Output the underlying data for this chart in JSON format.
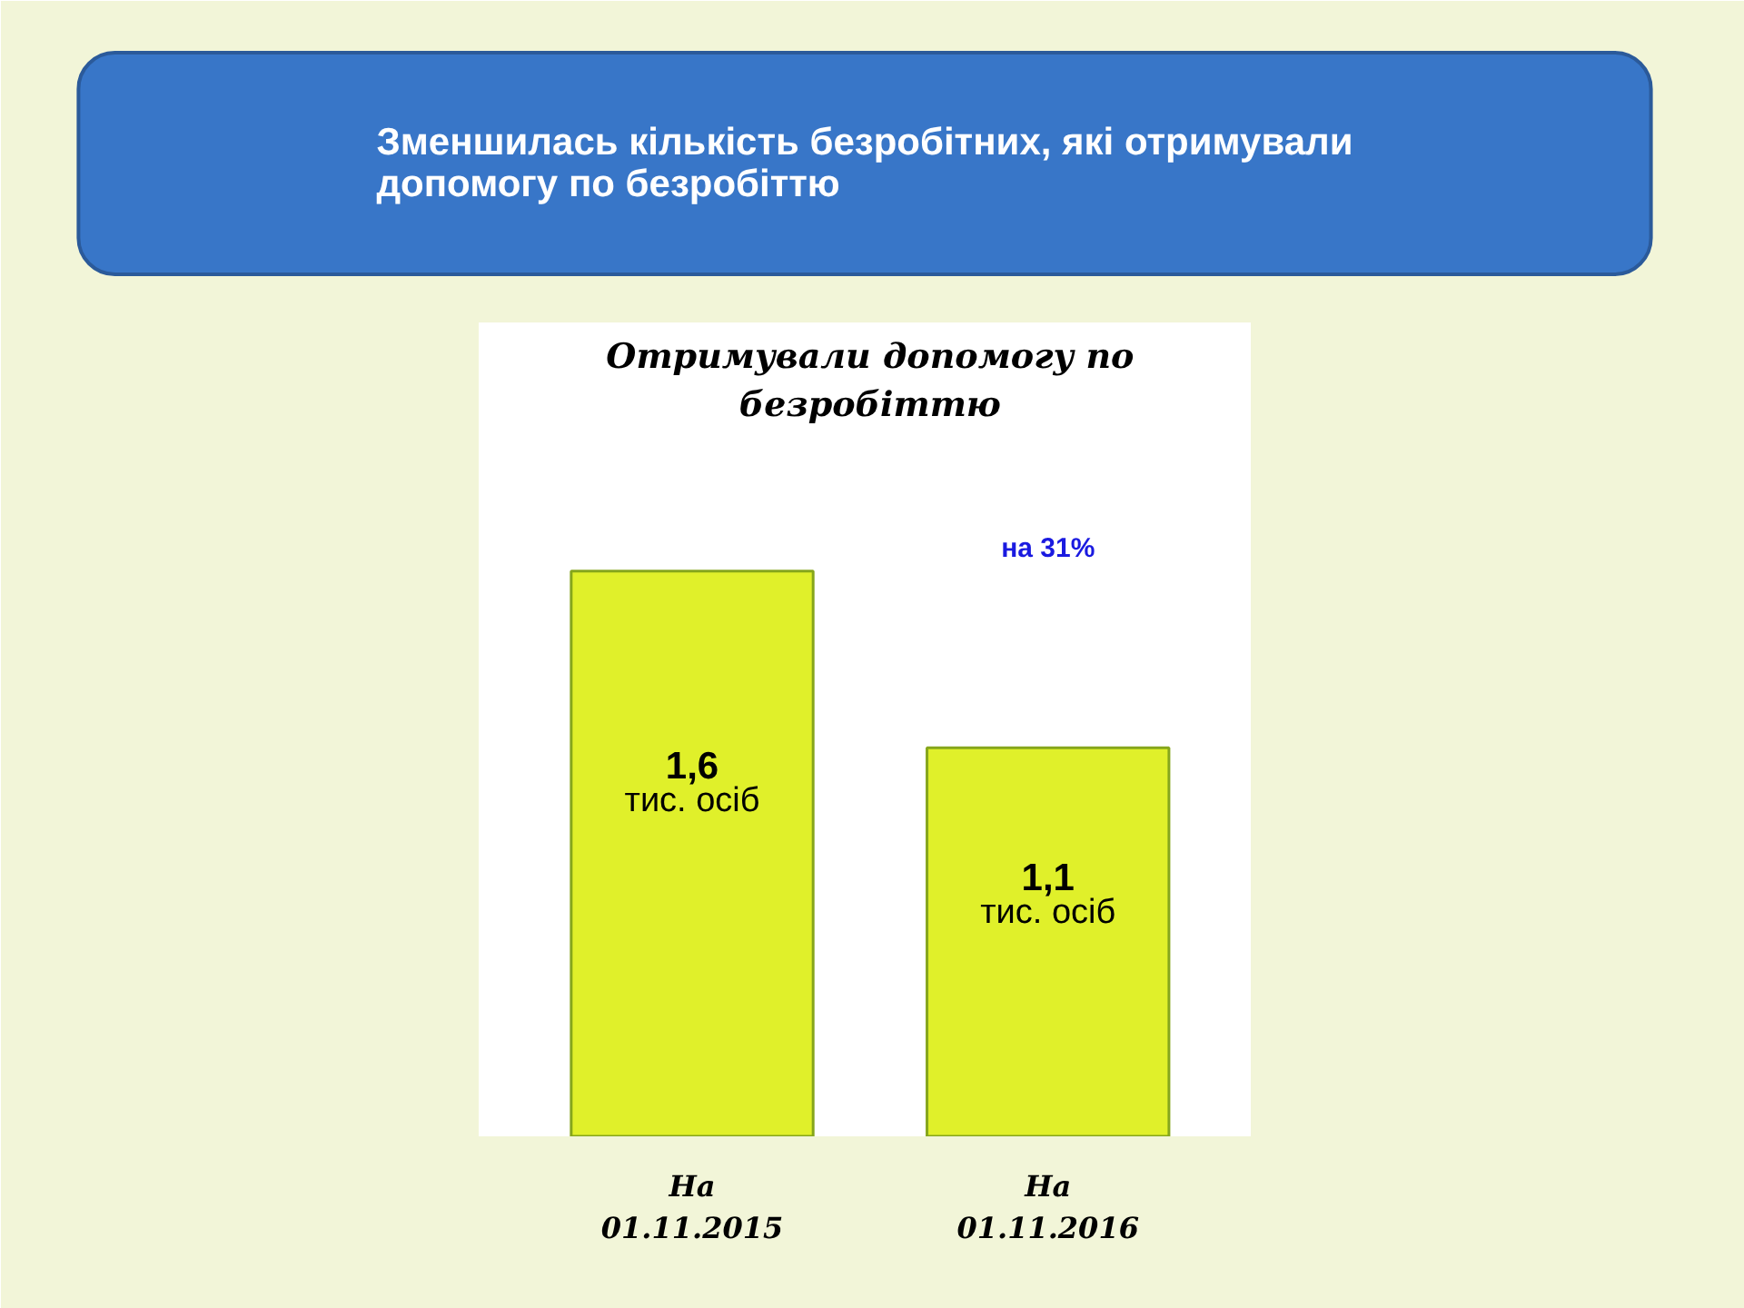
{
  "chart_data": {
    "type": "bar",
    "title": "Зменшилась кількість безробітних, які отримували допомогу по безробіттю",
    "subtitle": "Отримували допомогу по безробіттю",
    "categories": [
      "На 01.11.2015",
      "На 01.11.2016"
    ],
    "values": [
      1.6,
      1.1
    ],
    "value_labels": [
      "1,6 тис. осіб",
      "1,1 тис. осіб"
    ],
    "color": "#e0f02a",
    "tick_labels": "x",
    "annotations": [
      "на 31%"
    ]
  }
}
